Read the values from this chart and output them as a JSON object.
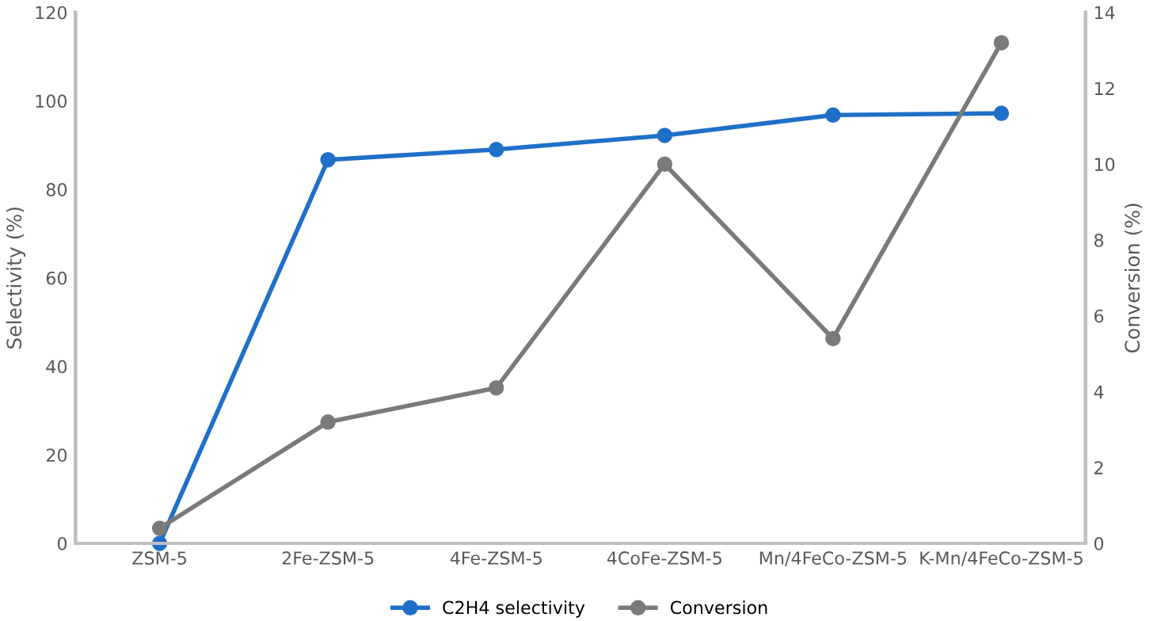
{
  "chart_data": {
    "type": "line",
    "ylabel": "Selectivity (%)",
    "y2label": "Conversion (%)",
    "categories": [
      "ZSM-5",
      "2Fe-ZSM-5",
      "4Fe-ZSM-5",
      "4CoFe-ZSM-5",
      "Mn/4FeCo-ZSM-5",
      "K-Mn/4FeCo-ZSM-5"
    ],
    "series": [
      {
        "name": "C2H4 selectivity",
        "color": "#1f6fc9",
        "values": [
          0,
          86.7,
          89,
          92.2,
          96.8,
          97.2
        ]
      },
      {
        "name": "Conversion",
        "color": "#7a7a7a",
        "axis": "y2",
        "values": [
          0.4,
          3.2,
          4.1,
          10.0,
          5.4,
          13.2
        ]
      }
    ],
    "ylim": [
      0,
      120
    ],
    "yticks": [
      0,
      20,
      40,
      60,
      80,
      100,
      120
    ],
    "y2lim": [
      0,
      14
    ],
    "y2ticks": [
      0,
      2,
      4,
      6,
      8,
      10,
      12,
      14
    ],
    "grid": false,
    "legend": "bottom",
    "marker": "circle",
    "line_style": "solid"
  }
}
